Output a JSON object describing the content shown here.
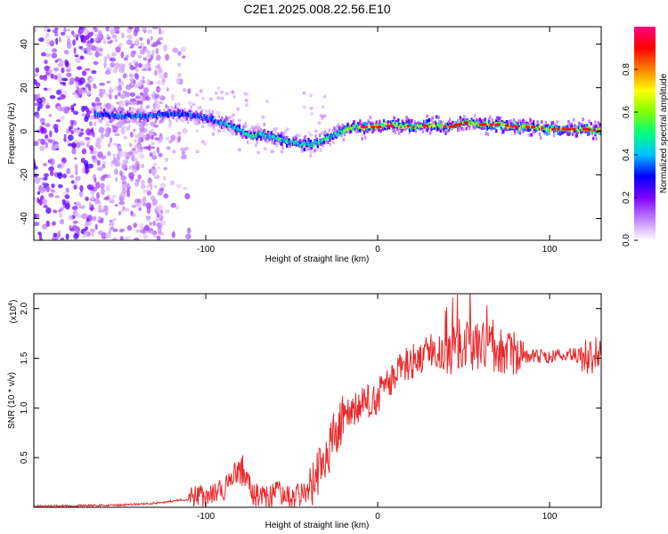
{
  "chart_data": [
    {
      "type": "heatmap",
      "title": "C2E1.2025.008.22.56.E10",
      "xlabel": "Height of straight line (km)",
      "ylabel": "Frequency (Hz)",
      "xlim": [
        -200,
        130
      ],
      "ylim": [
        -50,
        48
      ],
      "x_ticks": [
        -100,
        0,
        100
      ],
      "y_ticks": [
        -40,
        -20,
        0,
        20,
        40
      ],
      "colorbar": {
        "label": "Normalized spectral amplitude",
        "range": [
          0,
          1
        ],
        "ticks": [
          "0.0",
          "0.2",
          "0.4",
          "0.6",
          "0.8"
        ],
        "colors": [
          "#ffffff",
          "#c080ff",
          "#8000ff",
          "#0000ff",
          "#00c0ff",
          "#00ff80",
          "#80ff00",
          "#ffff00",
          "#ff8000",
          "#ff0000",
          "#ff0080"
        ]
      },
      "ridge": {
        "x": [
          -165,
          -150,
          -135,
          -120,
          -105,
          -95,
          -85,
          -75,
          -65,
          -55,
          -45,
          -38,
          -30,
          -22,
          -15,
          -5,
          0,
          10,
          20,
          30,
          40,
          50,
          60,
          70,
          80,
          90,
          100,
          110,
          120,
          130
        ],
        "y": [
          8,
          7,
          7,
          8,
          7,
          5,
          2,
          -2,
          -2,
          -4,
          -6,
          -6,
          -3,
          0,
          2,
          2,
          2,
          3,
          2,
          3,
          2,
          4,
          3,
          3,
          2,
          2,
          1,
          1,
          1,
          0
        ]
      }
    },
    {
      "type": "line",
      "title": "",
      "xlabel": "Height of straight line (km)",
      "ylabel": "SNR (10 * v/v)",
      "y_multiplier": "(x10",
      "y_multiplier_exp": "4",
      "y_multiplier_close": ")",
      "xlim": [
        -200,
        130
      ],
      "ylim": [
        0,
        2.15
      ],
      "x_ticks": [
        -100,
        0,
        100
      ],
      "y_ticks": [
        "0.5",
        "1.0",
        "1.5",
        "2.0"
      ],
      "color": "#e8292b",
      "envelope": {
        "x": [
          -200,
          -150,
          -130,
          -110,
          -90,
          -82,
          -78,
          -72,
          -65,
          -58,
          -52,
          -45,
          -40,
          -35,
          -30,
          -25,
          -20,
          -15,
          -10,
          -5,
          0,
          5,
          10,
          15,
          20,
          25,
          30,
          40,
          50,
          60,
          70,
          80,
          90,
          100,
          110,
          120,
          125,
          130
        ],
        "y": [
          0.01,
          0.02,
          0.04,
          0.08,
          0.15,
          0.35,
          0.3,
          0.12,
          0.08,
          0.15,
          0.08,
          0.12,
          0.15,
          0.3,
          0.5,
          0.7,
          0.85,
          0.95,
          1.0,
          1.05,
          1.1,
          1.2,
          1.3,
          1.4,
          1.45,
          1.5,
          1.55,
          1.55,
          1.6,
          1.6,
          1.55,
          1.5,
          1.52,
          1.5,
          1.55,
          1.5,
          1.5,
          1.55
        ]
      }
    }
  ]
}
